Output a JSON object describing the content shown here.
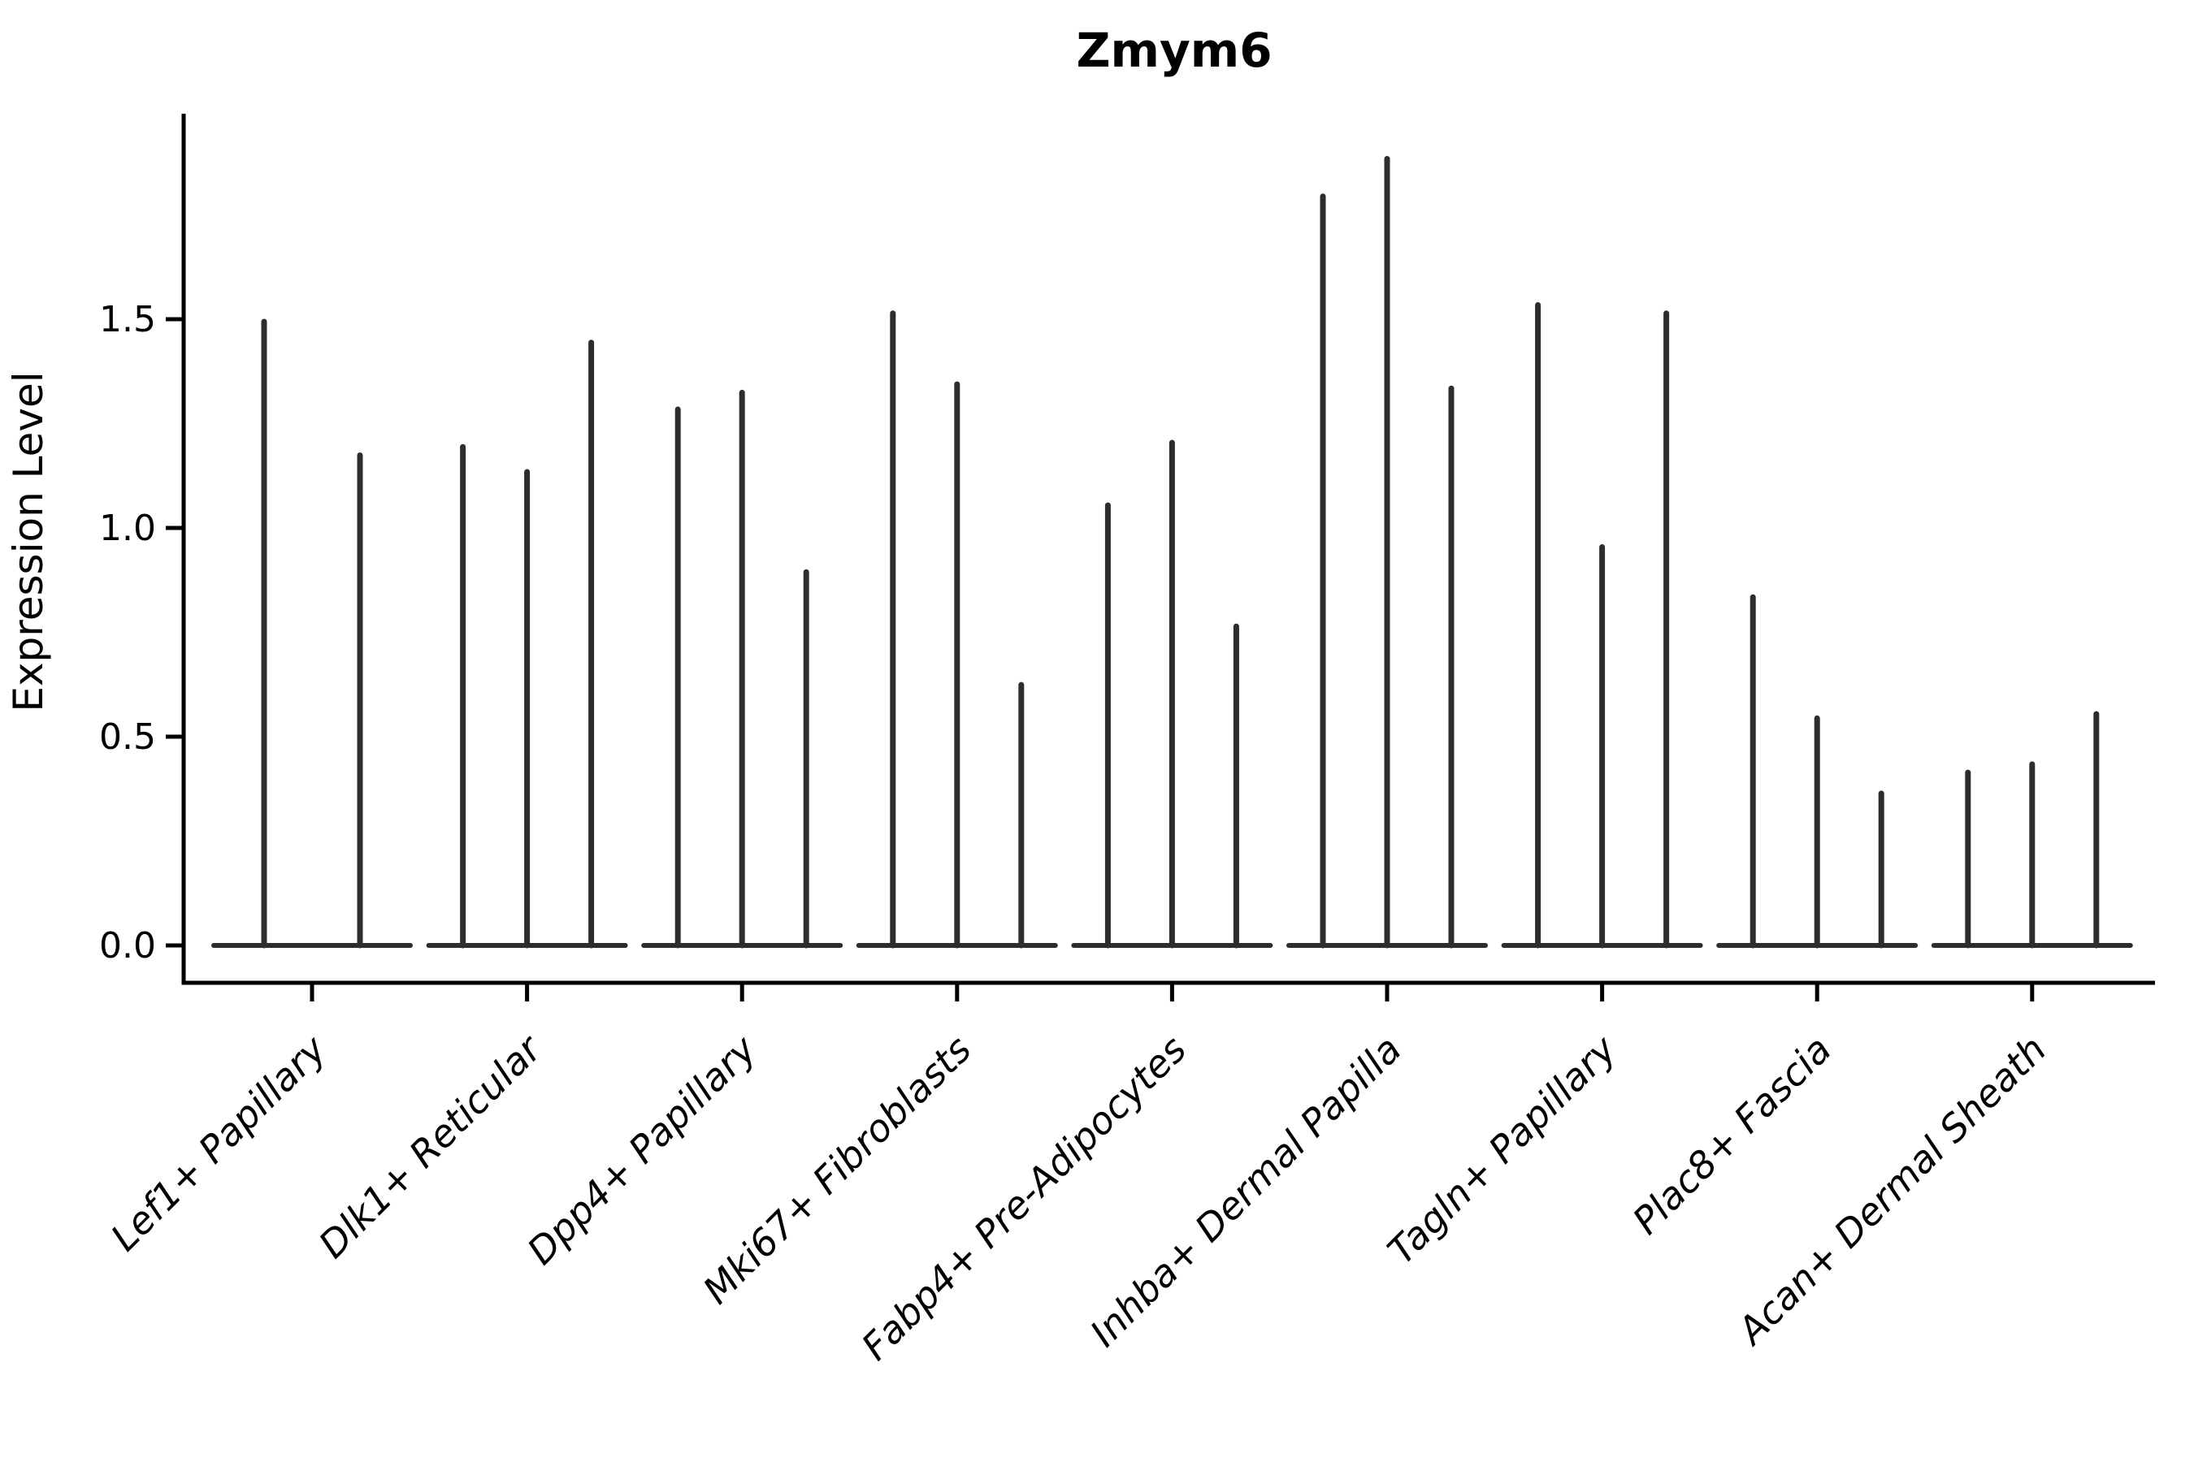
{
  "chart_data": {
    "type": "violin",
    "title": "Zmym6",
    "xlabel": "",
    "ylabel": "Expression Level",
    "yticks": [
      0.0,
      0.5,
      1.0,
      1.5
    ],
    "ylim": [
      -0.1,
      2.0
    ],
    "grid": false,
    "legend": "none",
    "categories": [
      "Lef1+ Papillary",
      "Dlk1+ Reticular",
      "Dpp4+ Papillary",
      "Mki67+ Fibroblasts",
      "Fabp4+ Pre-Adipocytes",
      "Inhba+ Dermal Papilla",
      "Tagln+ Papillary",
      "Plac8+ Fascia",
      "Acan+ Dermal Sheath"
    ],
    "groups": [
      {
        "label": "Lef1+ Papillary",
        "violin_maxima": [
          1.5,
          1.18
        ]
      },
      {
        "label": "Dlk1+ Reticular",
        "violin_maxima": [
          1.2,
          1.14,
          1.45
        ]
      },
      {
        "label": "Dpp4+ Papillary",
        "violin_maxima": [
          1.29,
          1.33,
          0.9
        ]
      },
      {
        "label": "Mki67+ Fibroblasts",
        "violin_maxima": [
          1.52,
          1.35,
          0.63
        ]
      },
      {
        "label": "Fabp4+ Pre-Adipocytes",
        "violin_maxima": [
          1.06,
          1.21,
          0.77
        ]
      },
      {
        "label": "Inhba+ Dermal Papilla",
        "violin_maxima": [
          1.8,
          1.89,
          1.34
        ]
      },
      {
        "label": "Tagln+ Papillary",
        "violin_maxima": [
          1.54,
          0.96,
          1.52
        ]
      },
      {
        "label": "Plac8+ Fascia",
        "violin_maxima": [
          0.84,
          0.55,
          0.37
        ]
      },
      {
        "label": "Acan+ Dermal Sheath",
        "violin_maxima": [
          0.42,
          0.44,
          0.56
        ]
      }
    ],
    "description": "Violin plot of Zmym6 expression level per fibroblast cluster; each cluster shows 2-3 narrow violins collapsed at 0 with thin spikes reaching the listed maxima.",
    "colors": {
      "violin": "#2d2d2d",
      "axis": "#000000",
      "background": "#ffffff"
    }
  }
}
